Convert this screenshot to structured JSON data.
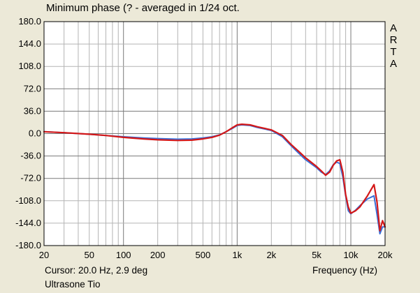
{
  "chart_data": {
    "type": "line",
    "title": "Minimum phase (? - averaged in 1/24 oct.",
    "xlabel": "Frequency (Hz)",
    "ylabel": "",
    "xscale": "log",
    "xlim": [
      20,
      20000
    ],
    "ylim": [
      -180,
      180
    ],
    "grid": true,
    "legend": "none",
    "yticks": [
      180,
      144,
      108,
      72,
      36,
      0,
      -36,
      -72,
      -108,
      -144,
      -180
    ],
    "ytick_labels": [
      "180.0",
      "144.0",
      "108.0",
      "72.0",
      "36.0",
      "0.0",
      "-36.0",
      "-72.0",
      "-108.0",
      "-144.0",
      "-180.0"
    ],
    "xticks": [
      20,
      50,
      100,
      200,
      500,
      1000,
      2000,
      5000,
      10000,
      20000
    ],
    "xtick_labels": [
      "20",
      "50",
      "100",
      "200",
      "500",
      "1k",
      "2k",
      "5k",
      "10k",
      "20k"
    ],
    "series": [
      {
        "color": "#3a6fd8",
        "x": [
          20,
          30,
          50,
          70,
          100,
          150,
          200,
          300,
          400,
          500,
          600,
          700,
          800,
          900,
          1000,
          1100,
          1300,
          1500,
          2000,
          2500,
          3000,
          3500,
          4000,
          5000,
          5500,
          6000,
          6500,
          7000,
          7500,
          8000,
          8500,
          9000,
          9500,
          10000,
          11000,
          12000,
          14000,
          16000,
          17000,
          18000,
          19000,
          20000
        ],
        "y": [
          3,
          1.5,
          -1,
          -3,
          -5,
          -7,
          -8,
          -9,
          -8.5,
          -7,
          -5,
          -2,
          3,
          8,
          13,
          14,
          13,
          10,
          5,
          -5,
          -20,
          -32,
          -42,
          -55,
          -62,
          -66,
          -60,
          -50,
          -46,
          -48,
          -70,
          -100,
          -124,
          -129,
          -123,
          -116,
          -105,
          -100,
          -130,
          -161,
          -150,
          -150
        ]
      },
      {
        "color": "#d41818",
        "x": [
          20,
          30,
          50,
          70,
          100,
          150,
          200,
          300,
          400,
          500,
          600,
          700,
          800,
          900,
          1000,
          1100,
          1300,
          1500,
          2000,
          2500,
          3000,
          3500,
          4000,
          5000,
          5500,
          6000,
          6500,
          7000,
          7500,
          8000,
          8500,
          9000,
          9500,
          10000,
          11000,
          12000,
          14000,
          16000,
          17000,
          18000,
          19000,
          20000
        ],
        "y": [
          3,
          1.5,
          -1,
          -3,
          -6,
          -8.5,
          -10,
          -11,
          -10.5,
          -8.5,
          -6,
          -2.5,
          3,
          9,
          14,
          15,
          14,
          11,
          6,
          -3,
          -18,
          -29,
          -39,
          -53,
          -60,
          -67,
          -62,
          -51,
          -44,
          -42,
          -62,
          -98,
          -118,
          -128,
          -124,
          -118,
          -100,
          -82,
          -110,
          -156,
          -140,
          -150
        ]
      }
    ]
  },
  "brand_letters": [
    "A",
    "R",
    "T",
    "A"
  ],
  "cursor_readout": "Cursor: 20.0 Hz, 2.9 deg",
  "device_name": "Ultrasone Tio",
  "colors": {
    "background": "#ece9d8",
    "plot_area": "#ffffff",
    "grid_minor": "#b4b4b4",
    "grid_major": "#7a7a7a"
  }
}
